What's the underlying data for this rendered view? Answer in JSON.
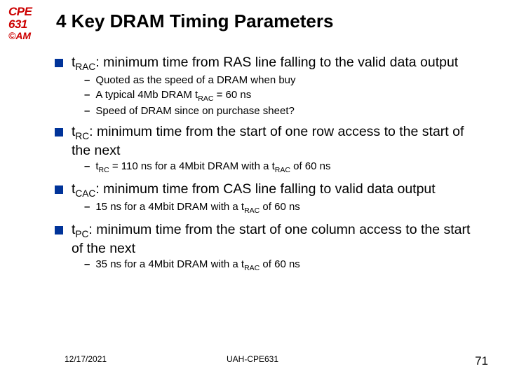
{
  "logo": {
    "line1": "CPE",
    "line2": "631",
    "line3": "©AM",
    "color": "#cc0000"
  },
  "title": "4 Key DRAM Timing Parameters",
  "square_color": "#003399",
  "bullets": [
    {
      "text": "t<sub>RAC</sub>: minimum time from RAS line falling to the valid data output",
      "subs": [
        "Quoted as the speed of a DRAM when buy",
        "A typical 4Mb DRAM t<sub>RAC</sub> = 60 ns",
        "Speed of DRAM since on purchase sheet?"
      ]
    },
    {
      "text": "t<sub>RC</sub>: minimum time from the start of one row access to the start of the next",
      "subs": [
        "t<sub>RC</sub> = 110 ns for a 4Mbit DRAM with a t<sub>RAC</sub> of 60 ns"
      ]
    },
    {
      "text": "t<sub>CAC</sub>: minimum time from CAS line falling to valid data output",
      "subs": [
        "15 ns for a 4Mbit DRAM with a t<sub>RAC</sub> of 60 ns"
      ]
    },
    {
      "text": "t<sub>PC</sub>: minimum time from the start of one column access to the start of the next",
      "subs": [
        "35 ns for a 4Mbit DRAM with a t<sub>RAC</sub> of 60 ns"
      ]
    }
  ],
  "footer": {
    "date": "12/17/2021",
    "center": "UAH-CPE631",
    "page": "71"
  }
}
